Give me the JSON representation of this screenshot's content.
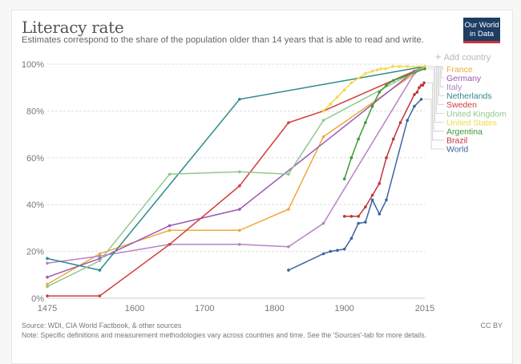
{
  "header": {
    "title": "Literacy rate",
    "subtitle": "Estimates correspond to the share of the population older than 14 years that is able to read and write.",
    "logo_line1": "Our World",
    "logo_line2": "in Data",
    "add_country": "Add country",
    "add_icon": "+"
  },
  "footer": {
    "source": "Source: WDI, CIA World Factbook, & other sources",
    "note": "Note: Specific definitions and measurement methodologies vary across countries and time. See the 'Sources'-tab for more details.",
    "license": "CC BY"
  },
  "chart_data": {
    "type": "line",
    "title": "Literacy rate",
    "xlabel": "",
    "ylabel": "",
    "xlim": [
      1475,
      2015
    ],
    "ylim": [
      0,
      100
    ],
    "x_ticks": [
      1475,
      1600,
      1700,
      1800,
      1900,
      2015
    ],
    "y_ticks": [
      0,
      20,
      40,
      60,
      80,
      100
    ],
    "y_tick_labels": [
      "0%",
      "20%",
      "40%",
      "60%",
      "80%",
      "100%"
    ],
    "grid": "horizontal-dashed",
    "legend": "right",
    "series": [
      {
        "name": "France",
        "color": "#f0a83c",
        "points": [
          [
            1475,
            6
          ],
          [
            1550,
            19
          ],
          [
            1650,
            29
          ],
          [
            1750,
            29
          ],
          [
            1820,
            38
          ],
          [
            1870,
            69
          ],
          [
            2015,
            99
          ]
        ]
      },
      {
        "name": "Germany",
        "color": "#9b59b6",
        "points": [
          [
            1475,
            9
          ],
          [
            1550,
            17
          ],
          [
            1650,
            31
          ],
          [
            1750,
            38
          ],
          [
            2000,
            97
          ],
          [
            2015,
            99
          ]
        ]
      },
      {
        "name": "Italy",
        "color": "#b683c4",
        "points": [
          [
            1475,
            15
          ],
          [
            1550,
            18
          ],
          [
            1650,
            23
          ],
          [
            1750,
            23
          ],
          [
            1820,
            22
          ],
          [
            1870,
            32
          ],
          [
            2000,
            96
          ],
          [
            2015,
            99
          ]
        ]
      },
      {
        "name": "Netherlands",
        "color": "#2e8a8a",
        "points": [
          [
            1475,
            17
          ],
          [
            1550,
            12
          ],
          [
            1750,
            85
          ],
          [
            2015,
            99
          ]
        ]
      },
      {
        "name": "Sweden",
        "color": "#d03c3c",
        "points": [
          [
            1475,
            1
          ],
          [
            1550,
            1
          ],
          [
            1650,
            23
          ],
          [
            1750,
            48
          ],
          [
            1820,
            75
          ],
          [
            1870,
            80
          ],
          [
            2015,
            99
          ]
        ]
      },
      {
        "name": "United Kingdom",
        "color": "#8fc98c",
        "points": [
          [
            1475,
            5
          ],
          [
            1550,
            16
          ],
          [
            1650,
            53
          ],
          [
            1750,
            54
          ],
          [
            1820,
            53
          ],
          [
            1870,
            76
          ],
          [
            2015,
            99
          ]
        ]
      },
      {
        "name": "United States",
        "color": "#f5d94a",
        "points": [
          [
            1870,
            80
          ],
          [
            1880,
            83
          ],
          [
            1890,
            86
          ],
          [
            1900,
            89
          ],
          [
            1910,
            92
          ],
          [
            1920,
            94
          ],
          [
            1930,
            96
          ],
          [
            1940,
            97
          ],
          [
            1947,
            97.5
          ],
          [
            1952,
            98
          ],
          [
            1959,
            98
          ],
          [
            1969,
            99
          ],
          [
            1979,
            99
          ],
          [
            1990,
            99
          ],
          [
            2015,
            99
          ]
        ]
      },
      {
        "name": "Argentina",
        "color": "#3c9a3c",
        "points": [
          [
            1900,
            51
          ],
          [
            1910,
            60
          ],
          [
            1920,
            68
          ],
          [
            1930,
            75
          ],
          [
            1940,
            82
          ],
          [
            1950,
            88
          ],
          [
            1960,
            91
          ],
          [
            1970,
            93
          ],
          [
            2015,
            98
          ]
        ]
      },
      {
        "name": "Brazil",
        "color": "#c0343c",
        "points": [
          [
            1900,
            35
          ],
          [
            1910,
            35
          ],
          [
            1920,
            35
          ],
          [
            1930,
            39
          ],
          [
            1940,
            44
          ],
          [
            1950,
            49
          ],
          [
            1960,
            60
          ],
          [
            1970,
            68
          ],
          [
            1980,
            75
          ],
          [
            2000,
            87
          ],
          [
            2004,
            88
          ],
          [
            2007,
            90
          ],
          [
            2010,
            91
          ],
          [
            2012,
            91
          ],
          [
            2014,
            92
          ]
        ]
      },
      {
        "name": "World",
        "color": "#3a64a0",
        "points": [
          [
            1820,
            12
          ],
          [
            1870,
            19
          ],
          [
            1880,
            20
          ],
          [
            1890,
            20.5
          ],
          [
            1900,
            21
          ],
          [
            1910,
            25.6
          ],
          [
            1920,
            32
          ],
          [
            1930,
            32.5
          ],
          [
            1940,
            42
          ],
          [
            1950,
            36
          ],
          [
            1960,
            42
          ],
          [
            1990,
            76
          ],
          [
            2000,
            82
          ],
          [
            2010,
            85
          ]
        ]
      }
    ]
  }
}
